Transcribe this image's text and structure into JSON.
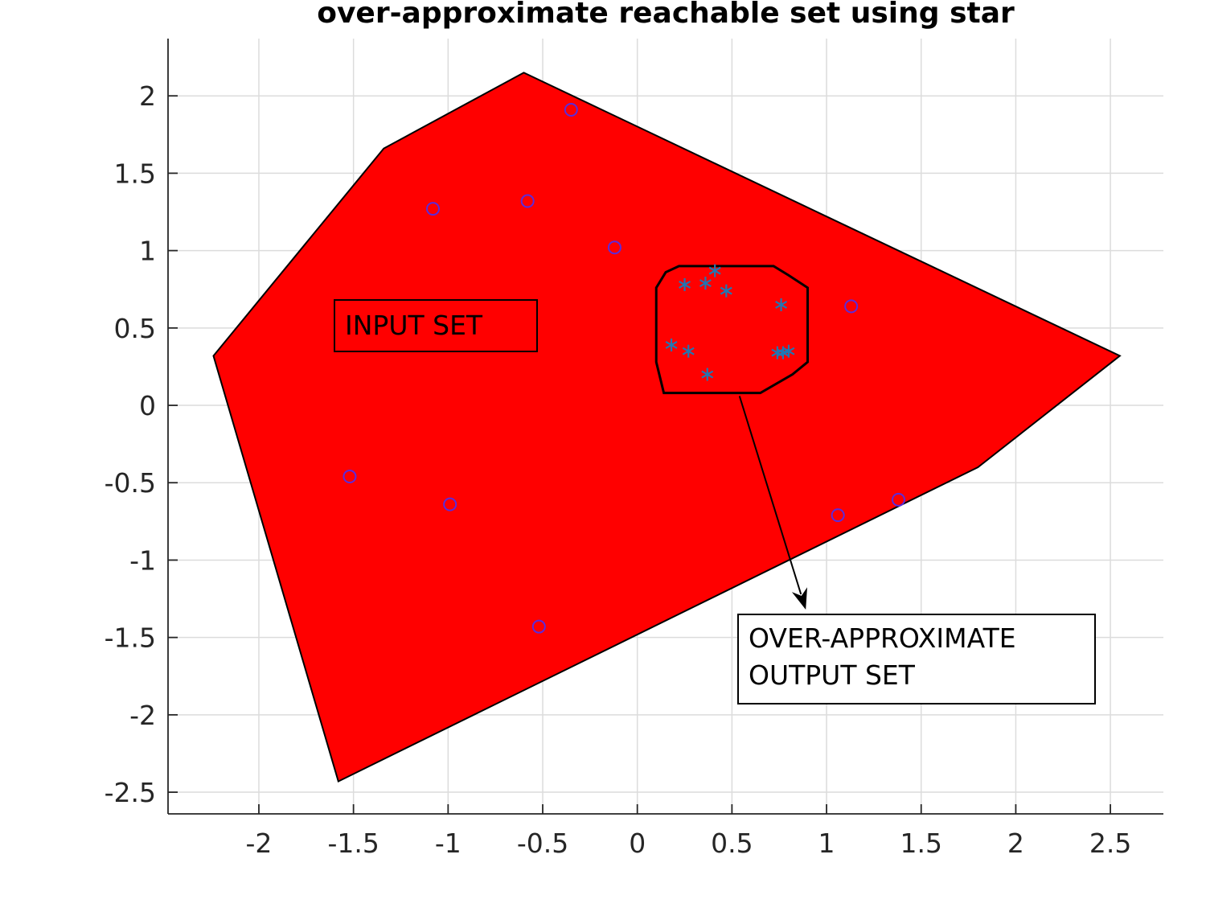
{
  "chart_data": {
    "type": "scatter",
    "title": "over-approximate reachable set using star",
    "xlabel": "",
    "ylabel": "",
    "xlim": [
      -2.48,
      2.78
    ],
    "ylim": [
      -2.64,
      2.37
    ],
    "xticks": [
      -2,
      -1.5,
      -1,
      -0.5,
      0,
      0.5,
      1,
      1.5,
      2,
      2.5
    ],
    "xtick_labels": [
      "-2",
      "-1.5",
      "-1",
      "-0.5",
      "0",
      "0.5",
      "1",
      "1.5",
      "2",
      "2.5"
    ],
    "yticks": [
      2,
      1.5,
      1,
      0.5,
      0,
      -0.5,
      -1,
      -1.5,
      -2,
      -2.5
    ],
    "ytick_labels": [
      "2",
      "1.5",
      "1",
      "0.5",
      "0",
      "-0.5",
      "-1",
      "-1.5",
      "-2",
      "-2.5"
    ],
    "grid": true,
    "colors": {
      "input_set_fill": "#ff0000",
      "input_marker": "#5b2bdc",
      "output_marker": "#1f77b4",
      "axis": "#262626",
      "grid": "#dcdcdc"
    },
    "input_set_polygon": [
      [
        -2.24,
        0.32
      ],
      [
        -1.34,
        1.66
      ],
      [
        -0.6,
        2.15
      ],
      [
        2.55,
        0.32
      ],
      [
        1.8,
        -0.4
      ],
      [
        -1.58,
        -2.43
      ]
    ],
    "output_set_polygon": [
      [
        0.22,
        0.9
      ],
      [
        0.72,
        0.9
      ],
      [
        0.8,
        0.84
      ],
      [
        0.9,
        0.76
      ],
      [
        0.9,
        0.28
      ],
      [
        0.82,
        0.2
      ],
      [
        0.65,
        0.08
      ],
      [
        0.14,
        0.08
      ],
      [
        0.1,
        0.28
      ],
      [
        0.1,
        0.76
      ],
      [
        0.15,
        0.86
      ]
    ],
    "input_samples": [
      [
        -0.35,
        1.91
      ],
      [
        -1.08,
        1.27
      ],
      [
        -0.58,
        1.32
      ],
      [
        -0.12,
        1.02
      ],
      [
        1.13,
        0.64
      ],
      [
        -1.52,
        -0.46
      ],
      [
        -0.99,
        -0.64
      ],
      [
        1.06,
        -0.71
      ],
      [
        1.38,
        -0.61
      ],
      [
        -0.52,
        -1.43
      ]
    ],
    "output_samples": [
      [
        0.41,
        0.87
      ],
      [
        0.25,
        0.78
      ],
      [
        0.36,
        0.79
      ],
      [
        0.47,
        0.74
      ],
      [
        0.76,
        0.65
      ],
      [
        0.18,
        0.39
      ],
      [
        0.27,
        0.35
      ],
      [
        0.37,
        0.2
      ],
      [
        0.74,
        0.34
      ],
      [
        0.77,
        0.34
      ],
      [
        0.8,
        0.35
      ]
    ],
    "annotations": {
      "input_set_label": "INPUT SET",
      "output_set_label_line1": "OVER-APPROXIMATE",
      "output_set_label_line2": "OUTPUT SET",
      "arrow_from": [
        0.54,
        0.06
      ],
      "arrow_to": [
        0.89,
        -1.32
      ]
    }
  }
}
